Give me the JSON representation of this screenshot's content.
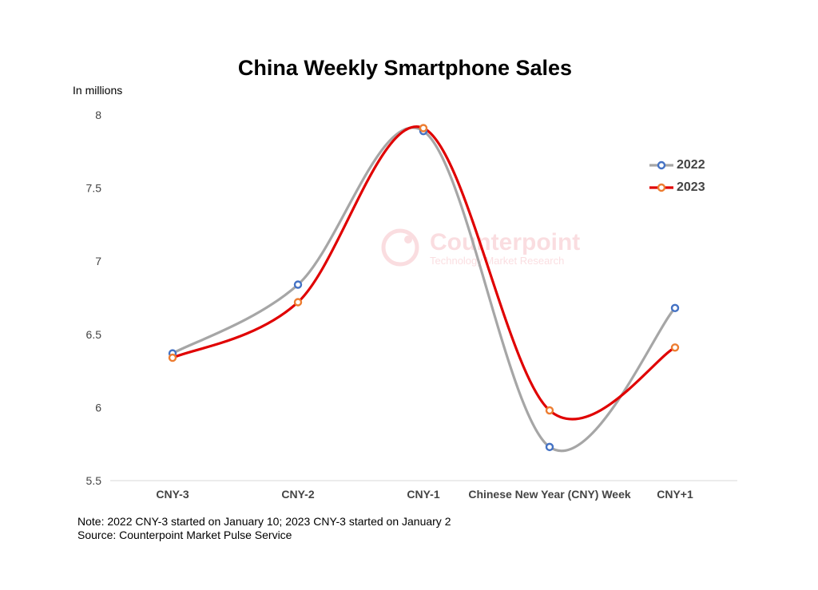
{
  "chart_data": {
    "type": "line",
    "title": "China Weekly Smartphone Sales",
    "ylabel": "In millions",
    "xlabel": "",
    "categories": [
      "CNY-3",
      "CNY-2",
      "CNY-1",
      "Chinese New Year (CNY) Week",
      "CNY+1"
    ],
    "y_ticks": [
      "5.5",
      "6",
      "6.5",
      "7",
      "7.5",
      "8"
    ],
    "ylim": [
      5.5,
      8
    ],
    "smooth": true,
    "grid": false,
    "legend_position": "right",
    "series": [
      {
        "name": "2022",
        "values": [
          6.37,
          6.84,
          7.89,
          5.73,
          6.68
        ],
        "line_color": "#A6A6A6",
        "marker_color": "#4472C4"
      },
      {
        "name": "2023",
        "values": [
          6.34,
          6.72,
          7.91,
          5.98,
          6.41
        ],
        "line_color": "#E00000",
        "marker_color": "#ED7D31"
      }
    ]
  },
  "watermark": {
    "brand": "Counterpoint",
    "tagline": "Technology Market Research"
  },
  "notes": {
    "note": "Note: 2022 CNY-3 started on January 10; 2023 CNY-3 started on January 2",
    "source": "Source: Counterpoint Market Pulse Service"
  }
}
